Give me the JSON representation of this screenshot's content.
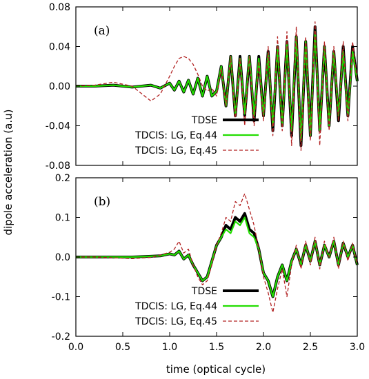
{
  "figure": {
    "ylabel": "dipole acceleration (a.u)",
    "xlabel": "time (optical cycle)"
  },
  "colors": {
    "tdse": "#000000",
    "eq44": "#22dd00",
    "eq45": "#b22222"
  },
  "chart_data": [
    {
      "type": "line",
      "panel_label": "(a)",
      "xlim": [
        0.0,
        3.0
      ],
      "ylim": [
        -0.08,
        0.08
      ],
      "x_ticks": [
        0.0,
        0.5,
        1.0,
        1.5,
        2.0,
        2.5,
        3.0
      ],
      "y_ticks": [
        -0.08,
        -0.04,
        0.0,
        0.04,
        0.08
      ],
      "y_tick_labels": [
        "-0.08",
        "-0.04",
        "0.00",
        "0.04",
        "0.08"
      ],
      "legend_position": "bottom-right",
      "series": [
        {
          "name": "TDSE",
          "style": "solid-thick",
          "x": [
            0.0,
            0.2,
            0.4,
            0.6,
            0.8,
            0.9,
            1.0,
            1.05,
            1.1,
            1.15,
            1.2,
            1.25,
            1.3,
            1.35,
            1.4,
            1.45,
            1.5,
            1.55,
            1.6,
            1.65,
            1.7,
            1.75,
            1.8,
            1.85,
            1.9,
            1.95,
            2.0,
            2.05,
            2.1,
            2.15,
            2.2,
            2.25,
            2.3,
            2.35,
            2.4,
            2.45,
            2.5,
            2.55,
            2.6,
            2.65,
            2.7,
            2.75,
            2.8,
            2.85,
            2.9,
            2.95,
            3.0
          ],
          "values": [
            0.0,
            0.0,
            0.001,
            -0.001,
            0.001,
            -0.002,
            0.003,
            -0.004,
            0.005,
            -0.006,
            0.006,
            -0.008,
            0.008,
            -0.01,
            0.01,
            -0.01,
            -0.005,
            0.02,
            -0.02,
            0.03,
            -0.03,
            0.03,
            -0.03,
            0.03,
            -0.035,
            0.03,
            -0.03,
            0.035,
            -0.045,
            0.04,
            -0.04,
            0.045,
            -0.05,
            0.05,
            -0.06,
            0.045,
            -0.05,
            0.06,
            -0.045,
            0.04,
            -0.04,
            0.035,
            -0.035,
            0.04,
            -0.03,
            0.04,
            0.005
          ]
        },
        {
          "name": "TDCIS: LG, Eq.44",
          "style": "solid",
          "x": [
            0.0,
            0.2,
            0.4,
            0.6,
            0.8,
            0.9,
            1.0,
            1.05,
            1.1,
            1.15,
            1.2,
            1.25,
            1.3,
            1.35,
            1.4,
            1.45,
            1.5,
            1.55,
            1.6,
            1.65,
            1.7,
            1.75,
            1.8,
            1.85,
            1.9,
            1.95,
            2.0,
            2.05,
            2.1,
            2.15,
            2.2,
            2.25,
            2.3,
            2.35,
            2.4,
            2.45,
            2.5,
            2.55,
            2.6,
            2.65,
            2.7,
            2.75,
            2.8,
            2.85,
            2.9,
            2.95,
            3.0
          ],
          "values": [
            0.0,
            0.0,
            0.001,
            -0.001,
            0.001,
            -0.002,
            0.003,
            -0.004,
            0.005,
            -0.006,
            0.006,
            -0.008,
            0.008,
            -0.01,
            0.01,
            -0.01,
            -0.005,
            0.02,
            -0.02,
            0.03,
            -0.03,
            0.028,
            -0.028,
            0.03,
            -0.03,
            0.028,
            -0.03,
            0.033,
            -0.04,
            0.04,
            -0.04,
            0.042,
            -0.045,
            0.05,
            -0.055,
            0.045,
            -0.05,
            0.055,
            -0.045,
            0.04,
            -0.04,
            0.035,
            -0.03,
            0.035,
            -0.03,
            0.035,
            0.005
          ]
        },
        {
          "name": "TDCIS: LG, Eq.45",
          "style": "dashed",
          "x": [
            0.0,
            0.2,
            0.4,
            0.6,
            0.8,
            0.9,
            1.0,
            1.05,
            1.1,
            1.15,
            1.2,
            1.25,
            1.3,
            1.35,
            1.4,
            1.45,
            1.5,
            1.55,
            1.6,
            1.65,
            1.7,
            1.75,
            1.8,
            1.85,
            1.9,
            1.95,
            2.0,
            2.05,
            2.1,
            2.15,
            2.2,
            2.25,
            2.3,
            2.35,
            2.4,
            2.45,
            2.5,
            2.55,
            2.6,
            2.65,
            2.7,
            2.75,
            2.8,
            2.85,
            2.9,
            2.95,
            3.0
          ],
          "values": [
            0.0,
            0.001,
            0.004,
            0.0,
            -0.015,
            -0.008,
            0.01,
            0.02,
            0.028,
            0.03,
            0.028,
            0.022,
            0.012,
            0.0,
            -0.005,
            -0.002,
            -0.01,
            0.018,
            -0.02,
            0.03,
            -0.035,
            0.028,
            -0.04,
            0.03,
            -0.04,
            0.025,
            -0.035,
            0.04,
            -0.05,
            0.05,
            -0.045,
            0.055,
            -0.06,
            0.06,
            -0.065,
            0.05,
            -0.055,
            0.065,
            -0.06,
            0.045,
            -0.045,
            0.04,
            -0.035,
            0.045,
            -0.035,
            0.045,
            0.005
          ]
        }
      ]
    },
    {
      "type": "line",
      "panel_label": "(b)",
      "xlim": [
        0.0,
        3.0
      ],
      "ylim": [
        -0.2,
        0.2
      ],
      "x_ticks": [
        0.0,
        0.5,
        1.0,
        1.5,
        2.0,
        2.5,
        3.0
      ],
      "x_tick_labels": [
        "0.0",
        "0.5",
        "1.0",
        "1.5",
        "2.0",
        "2.5",
        "3.0"
      ],
      "y_ticks": [
        -0.2,
        -0.1,
        0.0,
        0.1,
        0.2
      ],
      "y_tick_labels": [
        "-0.2",
        "-0.1",
        "0.0",
        "0.1",
        "0.2"
      ],
      "legend_position": "bottom-right",
      "series": [
        {
          "name": "TDSE",
          "style": "solid-thick",
          "x": [
            0.0,
            0.2,
            0.4,
            0.6,
            0.8,
            0.9,
            1.0,
            1.05,
            1.1,
            1.15,
            1.2,
            1.25,
            1.3,
            1.35,
            1.4,
            1.45,
            1.5,
            1.55,
            1.6,
            1.65,
            1.7,
            1.75,
            1.8,
            1.85,
            1.9,
            1.95,
            2.0,
            2.05,
            2.1,
            2.15,
            2.2,
            2.25,
            2.3,
            2.35,
            2.4,
            2.45,
            2.5,
            2.55,
            2.6,
            2.65,
            2.7,
            2.75,
            2.8,
            2.85,
            2.9,
            2.95,
            3.0
          ],
          "values": [
            0.0,
            0.0,
            0.0,
            0.0,
            0.002,
            0.003,
            0.008,
            0.005,
            0.015,
            -0.005,
            0.005,
            -0.02,
            -0.04,
            -0.06,
            -0.05,
            -0.01,
            0.03,
            0.05,
            0.08,
            0.07,
            0.1,
            0.09,
            0.11,
            0.07,
            0.06,
            0.02,
            -0.04,
            -0.06,
            -0.1,
            -0.05,
            -0.02,
            -0.06,
            -0.01,
            0.02,
            -0.02,
            0.03,
            -0.01,
            0.04,
            -0.02,
            0.03,
            0.0,
            0.04,
            -0.02,
            0.035,
            0.0,
            0.03,
            -0.02
          ]
        },
        {
          "name": "TDCIS: LG, Eq.44",
          "style": "solid",
          "x": [
            0.0,
            0.2,
            0.4,
            0.6,
            0.8,
            0.9,
            1.0,
            1.05,
            1.1,
            1.15,
            1.2,
            1.25,
            1.3,
            1.35,
            1.4,
            1.45,
            1.5,
            1.55,
            1.6,
            1.65,
            1.7,
            1.75,
            1.8,
            1.85,
            1.9,
            1.95,
            2.0,
            2.05,
            2.1,
            2.15,
            2.2,
            2.25,
            2.3,
            2.35,
            2.4,
            2.45,
            2.5,
            2.55,
            2.6,
            2.65,
            2.7,
            2.75,
            2.8,
            2.85,
            2.9,
            2.95,
            3.0
          ],
          "values": [
            0.0,
            0.0,
            0.0,
            0.0,
            0.002,
            0.003,
            0.008,
            0.005,
            0.015,
            -0.005,
            0.005,
            -0.02,
            -0.04,
            -0.06,
            -0.05,
            -0.01,
            0.03,
            0.05,
            0.07,
            0.06,
            0.09,
            0.08,
            0.1,
            0.06,
            0.05,
            0.02,
            -0.04,
            -0.06,
            -0.1,
            -0.05,
            -0.02,
            -0.06,
            -0.01,
            0.02,
            -0.02,
            0.03,
            -0.01,
            0.04,
            -0.02,
            0.03,
            0.0,
            0.04,
            -0.02,
            0.035,
            0.0,
            0.03,
            -0.02
          ]
        },
        {
          "name": "TDCIS: LG, Eq.45",
          "style": "dashed",
          "x": [
            0.0,
            0.2,
            0.4,
            0.6,
            0.8,
            0.9,
            1.0,
            1.05,
            1.1,
            1.15,
            1.2,
            1.25,
            1.3,
            1.35,
            1.4,
            1.45,
            1.5,
            1.55,
            1.6,
            1.65,
            1.7,
            1.75,
            1.8,
            1.85,
            1.9,
            1.95,
            2.0,
            2.05,
            2.1,
            2.15,
            2.2,
            2.25,
            2.3,
            2.35,
            2.4,
            2.45,
            2.5,
            2.55,
            2.6,
            2.65,
            2.7,
            2.75,
            2.8,
            2.85,
            2.9,
            2.95,
            3.0
          ],
          "values": [
            0.0,
            0.0,
            -0.002,
            -0.004,
            -0.001,
            0.005,
            0.012,
            0.02,
            0.04,
            0.01,
            0.02,
            -0.02,
            -0.05,
            -0.07,
            -0.06,
            -0.02,
            0.03,
            0.06,
            0.1,
            0.09,
            0.14,
            0.13,
            0.16,
            0.12,
            0.08,
            0.02,
            -0.05,
            -0.09,
            -0.14,
            -0.08,
            -0.03,
            -0.1,
            -0.02,
            0.03,
            -0.03,
            0.04,
            -0.02,
            0.05,
            -0.03,
            0.04,
            0.0,
            0.05,
            -0.03,
            0.04,
            -0.01,
            0.035,
            -0.02
          ]
        }
      ]
    }
  ]
}
